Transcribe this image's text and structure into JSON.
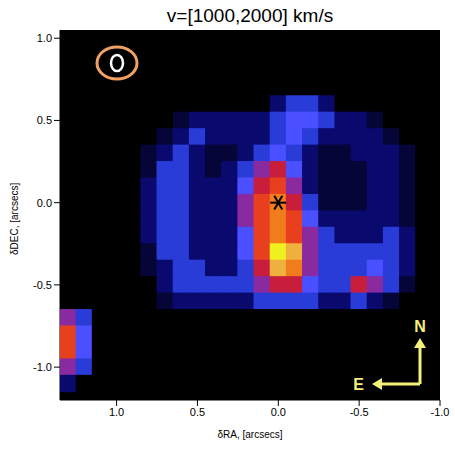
{
  "chart_data": {
    "type": "heatmap",
    "title": "v=[1000,2000] km/s",
    "x_label": "δRA, [arcsecs]",
    "y_label": "δDEC, [arcsecs]",
    "xlim": [
      1.35,
      -1.0
    ],
    "ylim": [
      -1.2,
      1.05
    ],
    "xticks": [
      {
        "value": 1,
        "label": "1.0"
      },
      0.5,
      {
        "value": 0,
        "label": "0.0"
      },
      -0.5,
      {
        "value": -1,
        "label": "-1.0"
      }
    ],
    "yticks": [
      {
        "value": 1,
        "label": "1.0"
      },
      0.5,
      {
        "value": 0,
        "label": "0.0"
      },
      -0.5,
      {
        "value": -1,
        "label": "-1.0"
      }
    ],
    "x": [
      1.3,
      1.2,
      1.1,
      1.0,
      0.9,
      0.8,
      0.7,
      0.6,
      0.5,
      0.4,
      0.3,
      0.2,
      0.1,
      0.0,
      -0.1,
      -0.2,
      -0.3,
      -0.4,
      -0.5,
      -0.6,
      -0.7,
      -0.8,
      -0.9
    ],
    "y": [
      1.0,
      0.9,
      0.8,
      0.7,
      0.6,
      0.5,
      0.4,
      0.3,
      0.2,
      0.1,
      0.0,
      -0.1,
      -0.2,
      -0.3,
      -0.4,
      -0.5,
      -0.6,
      -0.7,
      -0.8,
      -0.9,
      -1.0,
      -1.1
    ],
    "cells": [
      [
        0,
        0,
        0,
        0,
        0,
        0,
        0,
        0,
        0,
        0,
        0,
        0,
        0,
        0,
        0,
        0,
        0,
        0,
        0,
        0,
        0,
        0,
        0
      ],
      [
        0,
        0,
        0,
        0,
        0,
        0,
        0,
        0,
        0,
        0,
        0,
        0,
        0,
        0,
        0,
        0,
        0,
        0,
        0,
        0,
        0,
        0,
        0
      ],
      [
        0,
        0,
        0,
        0,
        0,
        0,
        0,
        0,
        0,
        0,
        0,
        0,
        0,
        0,
        0,
        0,
        0,
        0,
        0,
        0,
        0,
        0,
        0
      ],
      [
        0,
        0,
        0,
        0,
        0,
        0,
        0,
        0,
        0,
        0,
        0,
        0,
        0,
        0,
        0,
        0,
        0,
        0,
        0,
        0,
        0,
        0,
        0
      ],
      [
        0,
        0,
        0,
        0,
        0,
        0,
        0,
        0,
        0,
        0,
        0,
        0,
        0,
        2,
        3,
        3,
        2,
        0,
        0,
        0,
        0,
        0,
        0
      ],
      [
        0,
        0,
        0,
        0,
        0,
        0,
        0,
        1,
        2,
        2,
        2,
        2,
        2,
        3,
        4,
        4,
        3,
        2,
        2,
        1,
        0,
        0,
        0
      ],
      [
        0,
        0,
        0,
        0,
        0,
        0,
        1,
        2,
        3,
        2,
        2,
        2,
        2,
        3,
        4,
        3,
        2,
        2,
        2,
        2,
        1,
        0,
        0
      ],
      [
        0,
        0,
        0,
        0,
        0,
        1,
        2,
        3,
        2,
        1,
        1,
        2,
        3,
        4,
        3,
        2,
        1,
        1,
        2,
        2,
        2,
        1,
        0
      ],
      [
        0,
        0,
        0,
        0,
        0,
        1,
        3,
        3,
        2,
        1,
        2,
        3,
        5,
        6,
        4,
        2,
        1,
        1,
        1,
        2,
        2,
        1,
        0
      ],
      [
        0,
        0,
        0,
        0,
        0,
        2,
        3,
        3,
        2,
        2,
        2,
        4,
        6,
        7,
        5,
        2,
        1,
        1,
        1,
        2,
        2,
        1,
        0
      ],
      [
        0,
        0,
        0,
        0,
        0,
        2,
        3,
        3,
        2,
        2,
        2,
        5,
        7,
        8,
        6,
        3,
        1,
        1,
        1,
        2,
        2,
        1,
        0
      ],
      [
        0,
        0,
        0,
        0,
        0,
        2,
        3,
        3,
        2,
        2,
        2,
        5,
        7,
        8,
        7,
        4,
        2,
        2,
        2,
        2,
        2,
        1,
        0
      ],
      [
        0,
        0,
        0,
        0,
        0,
        2,
        3,
        3,
        2,
        2,
        2,
        4,
        7,
        8,
        7,
        5,
        3,
        2,
        2,
        2,
        3,
        2,
        0
      ],
      [
        0,
        0,
        0,
        0,
        0,
        1,
        3,
        3,
        2,
        2,
        2,
        4,
        7,
        10,
        9,
        5,
        3,
        3,
        3,
        3,
        3,
        2,
        0
      ],
      [
        0,
        0,
        0,
        0,
        0,
        1,
        2,
        3,
        3,
        2,
        2,
        3,
        6,
        9,
        8,
        5,
        3,
        3,
        3,
        4,
        3,
        2,
        0
      ],
      [
        0,
        0,
        0,
        0,
        0,
        0,
        2,
        3,
        3,
        3,
        3,
        3,
        5,
        6,
        6,
        4,
        3,
        3,
        6,
        5,
        3,
        1,
        0
      ],
      [
        0,
        0,
        0,
        0,
        0,
        0,
        1,
        2,
        2,
        2,
        2,
        2,
        3,
        3,
        3,
        3,
        2,
        2,
        3,
        2,
        1,
        0,
        0
      ],
      [
        5,
        3,
        0,
        0,
        0,
        0,
        0,
        0,
        0,
        0,
        0,
        0,
        0,
        0,
        0,
        0,
        0,
        0,
        0,
        0,
        0,
        0,
        0
      ],
      [
        7,
        4,
        0,
        0,
        0,
        0,
        0,
        0,
        0,
        0,
        0,
        0,
        0,
        0,
        0,
        0,
        0,
        0,
        0,
        0,
        0,
        0,
        0
      ],
      [
        7,
        4,
        0,
        0,
        0,
        0,
        0,
        0,
        0,
        0,
        0,
        0,
        0,
        0,
        0,
        0,
        0,
        0,
        0,
        0,
        0,
        0,
        0
      ],
      [
        5,
        3,
        0,
        0,
        0,
        0,
        0,
        0,
        0,
        0,
        0,
        0,
        0,
        0,
        0,
        0,
        0,
        0,
        0,
        0,
        0,
        0,
        0
      ],
      [
        2,
        0,
        0,
        0,
        0,
        0,
        0,
        0,
        0,
        0,
        0,
        0,
        0,
        0,
        0,
        0,
        0,
        0,
        0,
        0,
        0,
        0,
        0
      ]
    ],
    "nucleus": {
      "x": 0,
      "y": 0,
      "marker": "asterisk"
    },
    "compass": {
      "north": "N",
      "east": "E"
    }
  }
}
